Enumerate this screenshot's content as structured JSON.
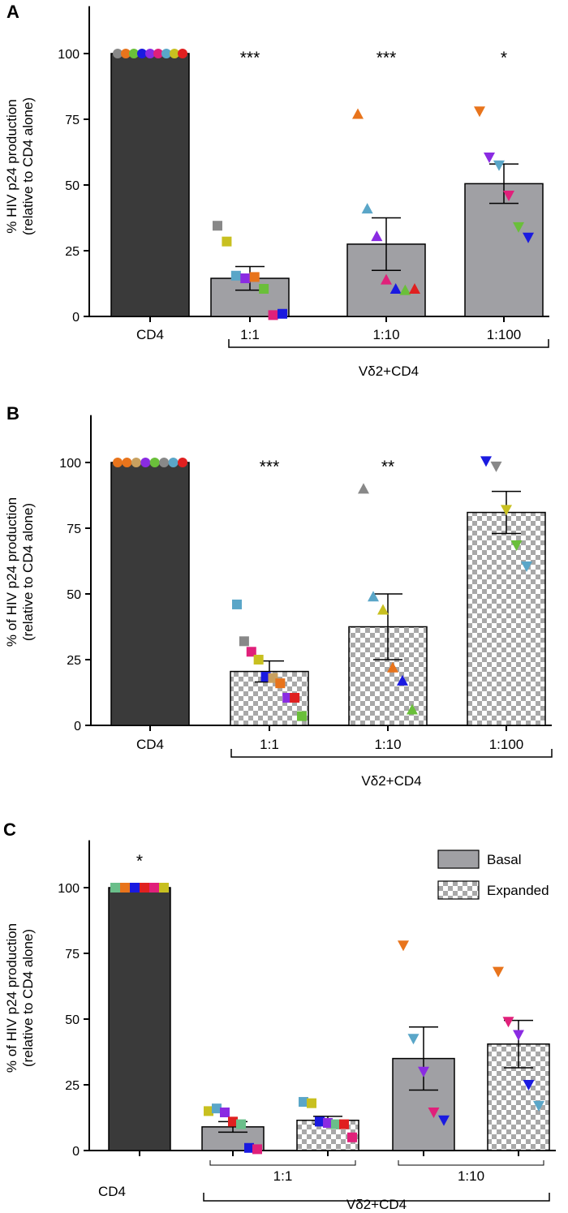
{
  "colors": {
    "cd4_bar": "#3a3a3a",
    "basal_bar": "#a0a0a4",
    "checker_light": "#ffffff",
    "checker_dark": "#a8a8a8"
  },
  "chart_data": [
    {
      "type": "bar",
      "panel": "A",
      "ylabel_line1": "% HIV p24 production",
      "ylabel_line2": "(relative to CD4 alone)",
      "yticks": [
        0,
        25,
        50,
        75,
        100
      ],
      "ylim": [
        0,
        118
      ],
      "group_label": "Vδ2+CD4",
      "bars": [
        {
          "label": "CD4",
          "value": 100,
          "err": 0,
          "style": "dark",
          "sig": "",
          "points": [
            {
              "y": 100,
              "shape": "circle",
              "color": "#888888"
            },
            {
              "y": 100,
              "shape": "circle",
              "color": "#e8741c"
            },
            {
              "y": 100,
              "shape": "circle",
              "color": "#6abf3a"
            },
            {
              "y": 100,
              "shape": "circle",
              "color": "#1a1ae0"
            },
            {
              "y": 100,
              "shape": "circle",
              "color": "#8a2be2"
            },
            {
              "y": 100,
              "shape": "circle",
              "color": "#e0207a"
            },
            {
              "y": 100,
              "shape": "circle",
              "color": "#5aa6c8"
            },
            {
              "y": 100,
              "shape": "circle",
              "color": "#c8c020"
            },
            {
              "y": 100,
              "shape": "circle",
              "color": "#e02020"
            }
          ]
        },
        {
          "label": "1:1",
          "value": 14.5,
          "err": 4.5,
          "style": "gray",
          "sig": "***",
          "points": [
            {
              "y": 34.5,
              "shape": "square",
              "color": "#888888"
            },
            {
              "y": 28.5,
              "shape": "square",
              "color": "#c8c020"
            },
            {
              "y": 15.5,
              "shape": "square",
              "color": "#5aa6c8"
            },
            {
              "y": 14.5,
              "shape": "square",
              "color": "#8a2be2"
            },
            {
              "y": 15,
              "shape": "square",
              "color": "#e8741c"
            },
            {
              "y": 10.5,
              "shape": "square",
              "color": "#6abf3a"
            },
            {
              "y": 0.5,
              "shape": "square",
              "color": "#e0207a"
            },
            {
              "y": 1,
              "shape": "square",
              "color": "#1a1ae0"
            }
          ]
        },
        {
          "label": "1:10",
          "value": 27.5,
          "err": 10,
          "style": "gray",
          "sig": "***",
          "points": [
            {
              "y": 77,
              "shape": "triangle-up",
              "color": "#e8741c"
            },
            {
              "y": 41,
              "shape": "triangle-up",
              "color": "#5aa6c8"
            },
            {
              "y": 30.5,
              "shape": "triangle-up",
              "color": "#8a2be2"
            },
            {
              "y": 14,
              "shape": "triangle-up",
              "color": "#e0207a"
            },
            {
              "y": 10.5,
              "shape": "triangle-up",
              "color": "#1a1ae0"
            },
            {
              "y": 10,
              "shape": "triangle-up",
              "color": "#6abf3a"
            },
            {
              "y": 10.5,
              "shape": "triangle-up",
              "color": "#e02020"
            }
          ]
        },
        {
          "label": "1:100",
          "value": 50.5,
          "err": 7.5,
          "style": "gray",
          "sig": "*",
          "points": [
            {
              "y": 78,
              "shape": "triangle-down",
              "color": "#e8741c"
            },
            {
              "y": 60.5,
              "shape": "triangle-down",
              "color": "#8a2be2"
            },
            {
              "y": 57.5,
              "shape": "triangle-down",
              "color": "#5aa6c8"
            },
            {
              "y": 46,
              "shape": "triangle-down",
              "color": "#e0207a"
            },
            {
              "y": 34,
              "shape": "triangle-down",
              "color": "#6abf3a"
            },
            {
              "y": 30,
              "shape": "triangle-down",
              "color": "#1a1ae0"
            }
          ]
        }
      ]
    },
    {
      "type": "bar",
      "panel": "B",
      "ylabel_line1": "% of HIV p24 production",
      "ylabel_line2": "(relative to CD4 alone)",
      "yticks": [
        0,
        25,
        50,
        75,
        100
      ],
      "ylim": [
        0,
        118
      ],
      "group_label": "Vδ2+CD4",
      "bars": [
        {
          "label": "CD4",
          "value": 100,
          "err": 0,
          "style": "dark",
          "sig": "",
          "points": [
            {
              "y": 100,
              "shape": "circle",
              "color": "#e8741c"
            },
            {
              "y": 100,
              "shape": "circle",
              "color": "#e8741c"
            },
            {
              "y": 100,
              "shape": "circle",
              "color": "#c8a060"
            },
            {
              "y": 100,
              "shape": "circle",
              "color": "#8a2be2"
            },
            {
              "y": 100,
              "shape": "circle",
              "color": "#6abf3a"
            },
            {
              "y": 100,
              "shape": "circle",
              "color": "#888888"
            },
            {
              "y": 100,
              "shape": "circle",
              "color": "#5aa6c8"
            },
            {
              "y": 100,
              "shape": "circle",
              "color": "#e02020"
            }
          ]
        },
        {
          "label": "1:1",
          "value": 20.5,
          "err": 4,
          "style": "checker",
          "sig": "***",
          "points": [
            {
              "y": 46,
              "shape": "square",
              "color": "#5aa6c8"
            },
            {
              "y": 32,
              "shape": "square",
              "color": "#888888"
            },
            {
              "y": 28,
              "shape": "square",
              "color": "#e0207a"
            },
            {
              "y": 25,
              "shape": "square",
              "color": "#c8c020"
            },
            {
              "y": 18.5,
              "shape": "square",
              "color": "#1a1ae0"
            },
            {
              "y": 18,
              "shape": "square",
              "color": "#c8a060"
            },
            {
              "y": 16,
              "shape": "square",
              "color": "#e8741c"
            },
            {
              "y": 10.5,
              "shape": "square",
              "color": "#8a2be2"
            },
            {
              "y": 10.5,
              "shape": "square",
              "color": "#e02020"
            },
            {
              "y": 3.5,
              "shape": "square",
              "color": "#6abf3a"
            }
          ]
        },
        {
          "label": "1:10",
          "value": 37.5,
          "err": 12.5,
          "style": "checker",
          "sig": "**",
          "points": [
            {
              "y": 90,
              "shape": "triangle-up",
              "color": "#888888"
            },
            {
              "y": 49,
              "shape": "triangle-up",
              "color": "#5aa6c8"
            },
            {
              "y": 44,
              "shape": "triangle-up",
              "color": "#c8c020"
            },
            {
              "y": 22,
              "shape": "triangle-up",
              "color": "#e8741c"
            },
            {
              "y": 17,
              "shape": "triangle-up",
              "color": "#1a1ae0"
            },
            {
              "y": 6,
              "shape": "triangle-up",
              "color": "#6abf3a"
            }
          ]
        },
        {
          "label": "1:100",
          "value": 81,
          "err": 8,
          "style": "checker",
          "sig": "",
          "points": [
            {
              "y": 100.5,
              "shape": "triangle-down",
              "color": "#1a1ae0"
            },
            {
              "y": 98.5,
              "shape": "triangle-down",
              "color": "#888888"
            },
            {
              "y": 82,
              "shape": "triangle-down",
              "color": "#c8c020"
            },
            {
              "y": 68.5,
              "shape": "triangle-down",
              "color": "#6abf3a"
            },
            {
              "y": 60.5,
              "shape": "triangle-down",
              "color": "#5aa6c8"
            }
          ]
        }
      ]
    },
    {
      "type": "bar",
      "panel": "C",
      "ylabel_line1": "% of HIV p24 production",
      "ylabel_line2": "(relative to CD4 alone)",
      "yticks": [
        0,
        25,
        50,
        75,
        100
      ],
      "ylim": [
        0,
        118
      ],
      "group_label": "Vδ2+CD4",
      "subgroup_labels": [
        "1:1",
        "1:10"
      ],
      "legend": [
        {
          "label": "Basal",
          "style": "gray"
        },
        {
          "label": "Expanded",
          "style": "checker"
        }
      ],
      "legend_position": "top-right",
      "bars": [
        {
          "label": "CD4",
          "value": 100,
          "err": 0,
          "style": "dark",
          "sig": "*",
          "points": [
            {
              "y": 100,
              "shape": "square",
              "color": "#6abf8a"
            },
            {
              "y": 100,
              "shape": "square",
              "color": "#e8741c"
            },
            {
              "y": 100,
              "shape": "square",
              "color": "#1a1ae0"
            },
            {
              "y": 100,
              "shape": "square",
              "color": "#e02020"
            },
            {
              "y": 100,
              "shape": "square",
              "color": "#e0207a"
            },
            {
              "y": 100,
              "shape": "square",
              "color": "#c8c020"
            }
          ]
        },
        {
          "label": "",
          "value": 9,
          "err": 2,
          "style": "gray",
          "sig": "",
          "points": [
            {
              "y": 15,
              "shape": "square",
              "color": "#c8c020"
            },
            {
              "y": 16,
              "shape": "square",
              "color": "#5aa6c8"
            },
            {
              "y": 14.5,
              "shape": "square",
              "color": "#8a2be2"
            },
            {
              "y": 11,
              "shape": "square",
              "color": "#e02020"
            },
            {
              "y": 10,
              "shape": "square",
              "color": "#6abf8a"
            },
            {
              "y": 1,
              "shape": "square",
              "color": "#1a1ae0"
            },
            {
              "y": 0.5,
              "shape": "square",
              "color": "#e0207a"
            }
          ]
        },
        {
          "label": "",
          "value": 11.5,
          "err": 1.5,
          "style": "checker",
          "sig": "",
          "points": [
            {
              "y": 18.5,
              "shape": "square",
              "color": "#5aa6c8"
            },
            {
              "y": 18,
              "shape": "square",
              "color": "#c8c020"
            },
            {
              "y": 11,
              "shape": "square",
              "color": "#1a1ae0"
            },
            {
              "y": 10.5,
              "shape": "square",
              "color": "#8a2be2"
            },
            {
              "y": 10,
              "shape": "square",
              "color": "#6abf8a"
            },
            {
              "y": 10,
              "shape": "square",
              "color": "#e02020"
            },
            {
              "y": 5,
              "shape": "square",
              "color": "#e0207a"
            }
          ]
        },
        {
          "label": "",
          "value": 35,
          "err": 12,
          "style": "gray",
          "sig": "",
          "points": [
            {
              "y": 78,
              "shape": "triangle-down",
              "color": "#e8741c"
            },
            {
              "y": 42.5,
              "shape": "triangle-down",
              "color": "#5aa6c8"
            },
            {
              "y": 30,
              "shape": "triangle-down",
              "color": "#8a2be2"
            },
            {
              "y": 14.5,
              "shape": "triangle-down",
              "color": "#e0207a"
            },
            {
              "y": 11.5,
              "shape": "triangle-down",
              "color": "#1a1ae0"
            }
          ]
        },
        {
          "label": "",
          "value": 40.5,
          "err": 9,
          "style": "checker",
          "sig": "",
          "points": [
            {
              "y": 68,
              "shape": "triangle-down",
              "color": "#e8741c"
            },
            {
              "y": 49,
              "shape": "triangle-down",
              "color": "#e0207a"
            },
            {
              "y": 44,
              "shape": "triangle-down",
              "color": "#8a2be2"
            },
            {
              "y": 25,
              "shape": "triangle-down",
              "color": "#1a1ae0"
            },
            {
              "y": 17,
              "shape": "triangle-down",
              "color": "#5aa6c8"
            }
          ]
        }
      ]
    }
  ]
}
